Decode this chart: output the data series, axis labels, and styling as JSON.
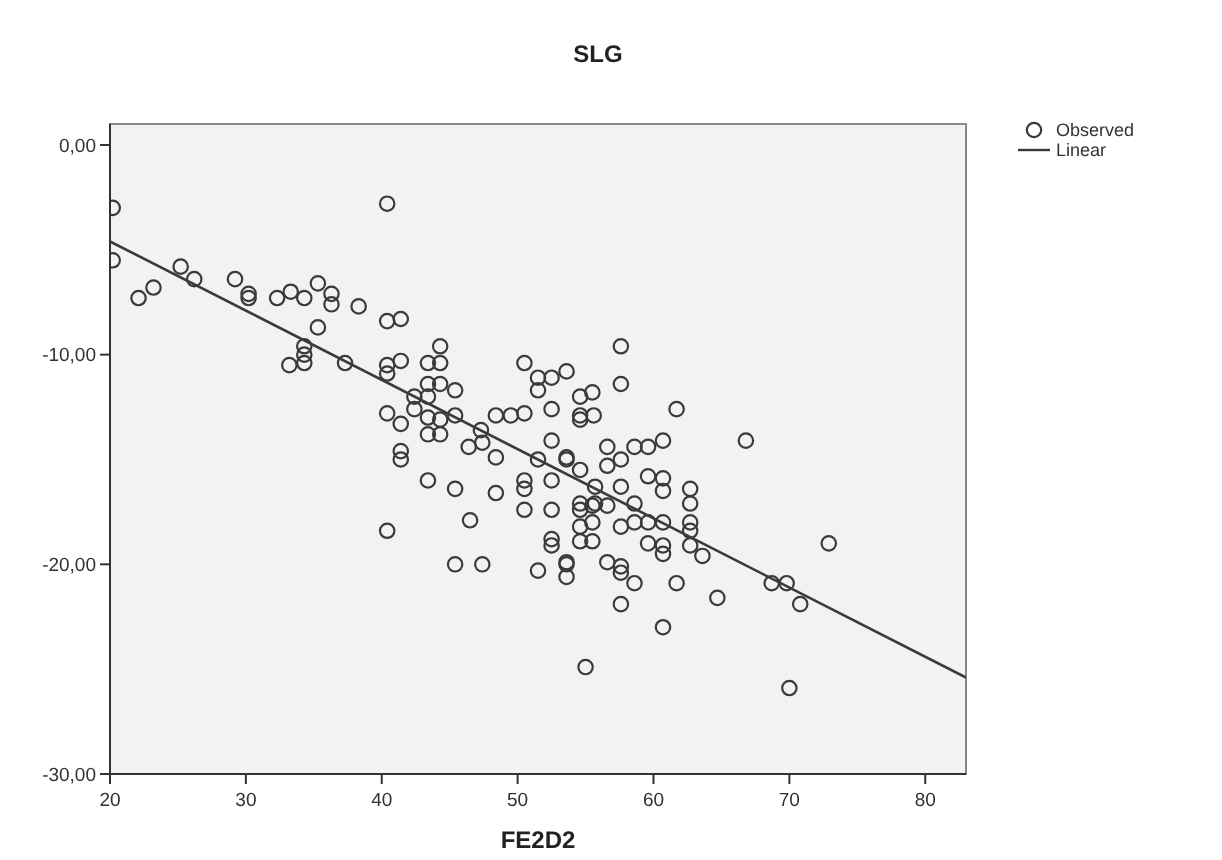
{
  "chart_data": {
    "type": "scatter",
    "title": "SLG",
    "xlabel": "FE2D2",
    "xlim": [
      20,
      83
    ],
    "ylim": [
      -30,
      1
    ],
    "xticks": [
      20,
      30,
      40,
      50,
      60,
      70,
      80
    ],
    "yticks": [
      {
        "value": 0,
        "label": "0,00"
      },
      {
        "value": -10,
        "label": "-10,00"
      },
      {
        "value": -20,
        "label": "-20,00"
      },
      {
        "value": -30,
        "label": "-30,00"
      }
    ],
    "legend": "top right",
    "grid": false,
    "series": [
      {
        "name": "Observed",
        "marker": "circle",
        "color": "#3a3a3a",
        "x": [
          20.2,
          20.2,
          22.1,
          23.2,
          25.2,
          26.2,
          29.2,
          30.2,
          30.2,
          32.3,
          33.3,
          34.3,
          35.3,
          36.3,
          36.3,
          38.3,
          35.3,
          34.3,
          34.3,
          33.2,
          34.3,
          37.3,
          40.4,
          40.4,
          41.4,
          40.4,
          40.4,
          41.4,
          44.3,
          43.4,
          44.3,
          43.4,
          44.3,
          45.4,
          42.4,
          43.4,
          42.4,
          43.4,
          40.4,
          41.4,
          44.3,
          44.3,
          43.4,
          45.4,
          47.3,
          48.4,
          49.5,
          50.5,
          50.5,
          51.5,
          51.5,
          52.5,
          53.6,
          52.5,
          54.6,
          55.5,
          54.6,
          52.5,
          53.6,
          54.6,
          51.5,
          48.4,
          47.4,
          46.4,
          41.4,
          41.4,
          43.4,
          45.4,
          48.4,
          50.5,
          50.5,
          50.5,
          52.5,
          52.5,
          54.6,
          54.6,
          55.5,
          54.6,
          55.5,
          52.5,
          52.5,
          54.6,
          55.5,
          46.5,
          40.4,
          45.4,
          47.4,
          51.5,
          53.6,
          53.6,
          55.0,
          57.6,
          57.6,
          54.6,
          55.6,
          56.6,
          58.6,
          59.6,
          60.7,
          61.7,
          66.8,
          53.6,
          56.6,
          57.6,
          57.6,
          59.6,
          60.7,
          60.7,
          55.7,
          55.7,
          56.6,
          58.6,
          62.7,
          62.7,
          57.6,
          58.6,
          59.6,
          60.7,
          62.7,
          62.7,
          59.6,
          60.7,
          60.7,
          62.7,
          63.6,
          53.6,
          56.6,
          57.6,
          57.6,
          58.6,
          61.7,
          57.6,
          64.7,
          60.7,
          68.7,
          69.8,
          70.8,
          72.9,
          70.0
        ],
        "values": [
          -3.0,
          -5.5,
          -7.3,
          -6.8,
          -5.8,
          -6.4,
          -6.4,
          -7.1,
          -7.3,
          -7.3,
          -7.0,
          -7.3,
          -6.6,
          -7.1,
          -7.6,
          -7.7,
          -8.7,
          -9.6,
          -10.0,
          -10.5,
          -10.4,
          -10.4,
          -2.8,
          -8.4,
          -8.3,
          -10.5,
          -10.9,
          -10.3,
          -9.6,
          -10.4,
          -10.4,
          -11.4,
          -11.4,
          -11.7,
          -12.0,
          -12.0,
          -12.6,
          -13.0,
          -12.8,
          -13.3,
          -13.1,
          -13.8,
          -13.8,
          -12.9,
          -13.6,
          -12.9,
          -12.9,
          -12.8,
          -10.4,
          -11.1,
          -11.7,
          -11.1,
          -10.8,
          -12.6,
          -12.0,
          -11.8,
          -13.1,
          -14.1,
          -14.9,
          -15.5,
          -15.0,
          -14.9,
          -14.2,
          -14.4,
          -14.6,
          -15.0,
          -16.0,
          -16.4,
          -16.6,
          -16.0,
          -16.4,
          -17.4,
          -16.0,
          -17.4,
          -17.1,
          -17.4,
          -17.2,
          -18.2,
          -18.0,
          -18.8,
          -19.1,
          -18.9,
          -18.9,
          -17.9,
          -18.4,
          -20.0,
          -20.0,
          -20.3,
          -20.0,
          -20.6,
          -24.9,
          -9.6,
          -11.4,
          -12.9,
          -12.9,
          -14.4,
          -14.4,
          -14.4,
          -14.1,
          -12.6,
          -14.1,
          -15.0,
          -15.3,
          -15.0,
          -16.3,
          -15.8,
          -15.9,
          -16.5,
          -16.3,
          -17.1,
          -17.2,
          -17.1,
          -16.4,
          -17.1,
          -18.2,
          -18.0,
          -18.0,
          -18.0,
          -18.0,
          -18.4,
          -19.0,
          -19.1,
          -19.5,
          -19.1,
          -19.6,
          -19.9,
          -19.9,
          -20.1,
          -20.4,
          -20.9,
          -20.9,
          -21.9,
          -21.6,
          -23.0,
          -20.9,
          -20.9,
          -21.9,
          -19.0,
          -25.9
        ]
      },
      {
        "name": "Linear",
        "type": "line",
        "marker": "none",
        "color": "#3a3a3a",
        "x": [
          20,
          83
        ],
        "values": [
          -4.6,
          -25.4
        ]
      }
    ]
  }
}
